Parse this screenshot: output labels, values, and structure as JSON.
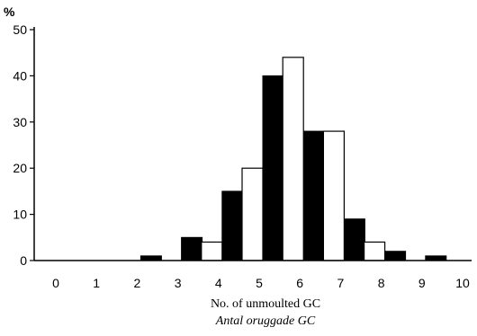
{
  "chart_data": {
    "type": "bar",
    "ylabel_unit": "%",
    "xlabel": "No. of unmoulted GC",
    "xlabel_translation": "Antal oruggade GC",
    "categories": [
      "0",
      "1",
      "2",
      "3",
      "4",
      "5",
      "6",
      "7",
      "8",
      "9",
      "10"
    ],
    "ylim": [
      0,
      50
    ],
    "yticks": [
      0,
      10,
      20,
      30,
      40,
      50
    ],
    "grid": false,
    "legend": "none",
    "series": [
      {
        "fill": "#000000",
        "values": [
          0,
          0,
          1,
          5,
          15,
          40,
          28,
          9,
          2,
          1,
          0
        ]
      },
      {
        "fill": "#ffffff",
        "values": [
          0,
          0,
          0,
          0,
          4,
          20,
          44,
          28,
          4,
          0,
          0
        ]
      }
    ]
  }
}
